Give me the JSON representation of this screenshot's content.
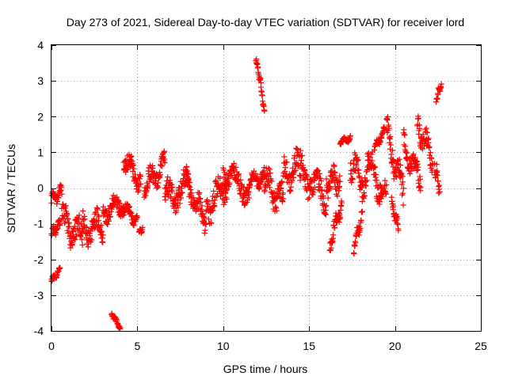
{
  "chart_data": {
    "type": "scatter",
    "title": "Day 273 of 2021, Sidereal Day-to-day VTEC variation (SDTVAR) for receiver lord",
    "xlabel": "GPS time / hours",
    "ylabel": "SDTVAR / TECUs",
    "xlim": [
      0,
      25
    ],
    "ylim": [
      -4,
      4
    ],
    "xticks": [
      0,
      5,
      10,
      15,
      20,
      25
    ],
    "yticks": [
      -4,
      -3,
      -2,
      -1,
      0,
      1,
      2,
      3,
      4
    ],
    "grid": true,
    "marker": "plus",
    "color": "#ff0000",
    "series": [
      {
        "name": "SDTVAR",
        "segments": [
          {
            "x0": 0.0,
            "x1": 0.6,
            "y0": -0.3,
            "y1": -0.1,
            "spread": 0.25
          },
          {
            "x0": 0.0,
            "x1": 0.5,
            "y0": -1.3,
            "y1": -1.0,
            "spread": 0.2
          },
          {
            "x0": 0.0,
            "x1": 0.5,
            "y0": -2.6,
            "y1": -2.3,
            "spread": 0.1
          },
          {
            "x0": 0.6,
            "x1": 1.8,
            "y0": -0.9,
            "y1": -1.4,
            "spread": 0.6
          },
          {
            "x0": 1.8,
            "x1": 3.0,
            "y0": -1.2,
            "y1": -1.0,
            "spread": 0.6
          },
          {
            "x0": 3.0,
            "x1": 4.2,
            "y0": -0.7,
            "y1": -0.4,
            "spread": 0.4
          },
          {
            "x0": 3.5,
            "x1": 4.0,
            "y0": -3.5,
            "y1": -3.9,
            "spread": 0.1
          },
          {
            "x0": 4.2,
            "x1": 5.2,
            "y0": 0.9,
            "y1": 0.1,
            "spread": 0.4
          },
          {
            "x0": 4.0,
            "x1": 5.0,
            "y0": -0.5,
            "y1": -0.9,
            "spread": 0.25
          },
          {
            "x0": 5.1,
            "x1": 5.3,
            "y0": -1.2,
            "y1": -1.2,
            "spread": 0.1
          },
          {
            "x0": 5.4,
            "x1": 6.6,
            "y0": 0.0,
            "y1": 0.7,
            "spread": 0.5
          },
          {
            "x0": 6.6,
            "x1": 8.0,
            "y0": -0.3,
            "y1": 0.1,
            "spread": 0.6
          },
          {
            "x0": 7.8,
            "x1": 9.0,
            "y0": 0.2,
            "y1": -1.0,
            "spread": 0.5
          },
          {
            "x0": 9.0,
            "x1": 10.2,
            "y0": -0.6,
            "y1": 0.2,
            "spread": 0.6
          },
          {
            "x0": 10.0,
            "x1": 11.5,
            "y0": 0.5,
            "y1": -0.1,
            "spread": 0.5
          },
          {
            "x0": 11.5,
            "x1": 12.4,
            "y0": 0.2,
            "y1": 0.3,
            "spread": 0.3
          },
          {
            "x0": 11.9,
            "x1": 12.2,
            "y0": 3.6,
            "y1": 2.9,
            "spread": 0.15
          },
          {
            "x0": 12.2,
            "x1": 12.4,
            "y0": 2.8,
            "y1": 2.1,
            "spread": 0.1
          },
          {
            "x0": 12.4,
            "x1": 13.5,
            "y0": 0.2,
            "y1": -0.4,
            "spread": 0.6
          },
          {
            "x0": 13.5,
            "x1": 14.5,
            "y0": 0.3,
            "y1": 0.6,
            "spread": 0.6
          },
          {
            "x0": 14.5,
            "x1": 16.0,
            "y0": 0.5,
            "y1": -0.3,
            "spread": 0.6
          },
          {
            "x0": 16.0,
            "x1": 16.8,
            "y0": 0.2,
            "y1": 0.2,
            "spread": 0.5
          },
          {
            "x0": 16.2,
            "x1": 16.9,
            "y0": -1.6,
            "y1": -0.4,
            "spread": 0.3
          },
          {
            "x0": 16.8,
            "x1": 17.4,
            "y0": 1.3,
            "y1": 1.4,
            "spread": 0.1
          },
          {
            "x0": 17.4,
            "x1": 18.4,
            "y0": 0.7,
            "y1": 0.0,
            "spread": 0.6
          },
          {
            "x0": 17.6,
            "x1": 18.1,
            "y0": -1.7,
            "y1": -0.7,
            "spread": 0.25
          },
          {
            "x0": 18.4,
            "x1": 19.5,
            "y0": 0.8,
            "y1": -0.4,
            "spread": 0.6
          },
          {
            "x0": 18.8,
            "x1": 19.4,
            "y0": 1.1,
            "y1": 1.6,
            "spread": 0.15
          },
          {
            "x0": 19.5,
            "x1": 20.5,
            "y0": 1.6,
            "y1": -0.2,
            "spread": 0.6
          },
          {
            "x0": 19.8,
            "x1": 20.2,
            "y0": -0.4,
            "y1": -1.1,
            "spread": 0.2
          },
          {
            "x0": 20.5,
            "x1": 21.5,
            "y0": 1.2,
            "y1": 0.2,
            "spread": 0.5
          },
          {
            "x0": 21.3,
            "x1": 22.2,
            "y0": 1.8,
            "y1": 0.8,
            "spread": 0.5
          },
          {
            "x0": 22.4,
            "x1": 22.7,
            "y0": 2.5,
            "y1": 2.9,
            "spread": 0.15
          },
          {
            "x0": 22.3,
            "x1": 22.6,
            "y0": 0.7,
            "y1": 0.0,
            "spread": 0.3
          }
        ]
      }
    ]
  }
}
